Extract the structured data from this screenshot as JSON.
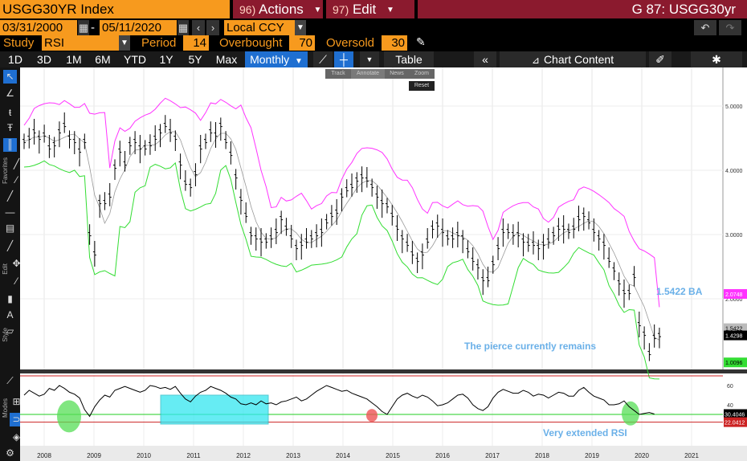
{
  "header": {
    "ticker": "USGG30YR Index",
    "actions_num": "96)",
    "actions_label": "Actions",
    "edit_num": "97)",
    "edit_label": "Edit",
    "title": "G 87: USGG30yr"
  },
  "range": {
    "start": "03/31/2000",
    "dash": "-",
    "end": "05/11/2020",
    "currency": "Local CCY"
  },
  "study": {
    "label": "Study",
    "value": "RSI",
    "period_label": "Period",
    "period_value": "14",
    "overbought_label": "Overbought",
    "overbought_value": "70",
    "oversold_label": "Oversold",
    "oversold_value": "30"
  },
  "tabs": [
    "1D",
    "3D",
    "1M",
    "6M",
    "YTD",
    "1Y",
    "5Y",
    "Max"
  ],
  "frequency": "Monthly",
  "table_label": "Table",
  "chart_content_label": "Chart Content",
  "overlay_menu": [
    "Track",
    "Annotate",
    "News",
    "Zoom"
  ],
  "reset_label": "Reset",
  "price_axis_ticks": [
    "5.0000",
    "4.0000",
    "3.0000",
    "2.0000"
  ],
  "price_badges": {
    "upper": "2.0748",
    "last": "1.4298",
    "lower": "1.0096",
    "hidden": "1.5422"
  },
  "rsi_axis_ticks": [
    "60",
    "40",
    "20"
  ],
  "rsi_badges": {
    "rsi": "30.4046",
    "lower": "22.0412"
  },
  "annotations": {
    "ba": "1.5422 BA",
    "pierce": "The pierce currently remains",
    "extended": "Very extended RSI"
  },
  "left_labels": {
    "favorites": "Favorites",
    "edit": "Edit",
    "style": "Style",
    "modes": "Modes"
  },
  "colors": {
    "orange": "#f79a1e",
    "maroon": "#8b1a2e",
    "active_tab": "#1f6fd1",
    "upper_band": "#ff33ff",
    "lower_band": "#33dd33",
    "annotation": "#6ab0e8",
    "highlight_box": "#33e6f0"
  },
  "chart_data": {
    "type": "line",
    "x_labels": [
      "2008",
      "2009",
      "2010",
      "2011",
      "2012",
      "2013",
      "2014",
      "2015",
      "2016",
      "2017",
      "2018",
      "2019",
      "2020",
      "2021"
    ],
    "price_range": [
      1.0,
      5.5
    ],
    "price_series": {
      "name": "USGG30YR",
      "values": [
        4.45,
        4.5,
        4.6,
        4.5,
        4.55,
        4.35,
        4.4,
        4.6,
        4.7,
        4.5,
        4.45,
        4.3,
        4.45,
        3.0,
        2.7,
        3.5,
        3.5,
        3.6,
        4.05,
        4.3,
        4.1,
        4.4,
        4.45,
        4.35,
        4.35,
        4.4,
        4.5,
        4.6,
        4.7,
        4.6,
        4.5,
        4.1,
        3.8,
        3.75,
        3.95,
        4.35,
        4.45,
        4.6,
        4.55,
        4.7,
        4.45,
        4.25,
        3.9,
        3.55,
        3.3,
        3.0,
        2.95,
        2.9,
        2.9,
        2.95,
        3.05,
        3.25,
        3.1,
        2.95,
        2.8,
        2.85,
        2.9,
        2.95,
        3.0,
        3.05,
        3.2,
        3.3,
        3.35,
        3.6,
        3.7,
        3.75,
        3.85,
        3.9,
        3.85,
        3.75,
        3.6,
        3.5,
        3.45,
        3.3,
        3.1,
        2.95,
        2.85,
        2.7,
        2.6,
        2.7,
        2.9,
        3.1,
        3.15,
        3.05,
        2.95,
        2.95,
        3.0,
        2.95,
        2.75,
        2.6,
        2.5,
        2.3,
        2.3,
        2.55,
        2.8,
        3.05,
        3.05,
        3.0,
        3.0,
        2.9,
        2.85,
        2.85,
        2.8,
        2.85,
        2.9,
        3.0,
        3.1,
        3.1,
        3.05,
        3.1,
        3.25,
        3.3,
        3.2,
        3.05,
        2.95,
        2.85,
        2.6,
        2.45,
        2.25,
        2.1,
        2.1,
        2.35,
        1.6,
        1.45,
        1.15,
        1.4,
        1.43
      ]
    },
    "upper_band": {
      "name": "Upper band"
    },
    "lower_band": {
      "name": "Lower band"
    },
    "rsi_series": {
      "name": "RSI",
      "values": [
        50,
        55,
        52,
        49,
        51,
        57,
        55,
        60,
        57,
        53,
        51,
        47,
        35,
        28,
        38,
        45,
        50,
        48,
        55,
        57,
        59,
        57,
        55,
        53,
        55,
        60,
        59,
        57,
        58,
        56,
        59,
        52,
        46,
        43,
        49,
        53,
        55,
        59,
        57,
        55,
        52,
        48,
        46,
        41,
        40,
        42,
        40,
        44,
        41,
        42,
        40,
        43,
        44,
        46,
        48,
        44,
        46,
        50,
        54,
        57,
        60,
        58,
        56,
        54,
        55,
        52,
        50,
        48,
        46,
        42,
        38,
        33,
        30,
        38,
        46,
        50,
        52,
        49,
        47,
        50,
        48,
        44,
        39,
        40,
        42,
        46,
        50,
        51,
        47,
        40,
        36,
        34,
        38,
        47,
        53,
        56,
        54,
        52,
        52,
        55,
        53,
        49,
        51,
        50,
        47,
        50,
        53,
        52,
        49,
        49,
        55,
        58,
        53,
        49,
        47,
        45,
        40,
        40,
        41,
        44,
        38,
        34,
        30,
        31,
        32,
        30.4
      ]
    },
    "rsi_range": [
      0,
      70
    ],
    "rsi_overbought": 70,
    "rsi_oversold": 30
  }
}
